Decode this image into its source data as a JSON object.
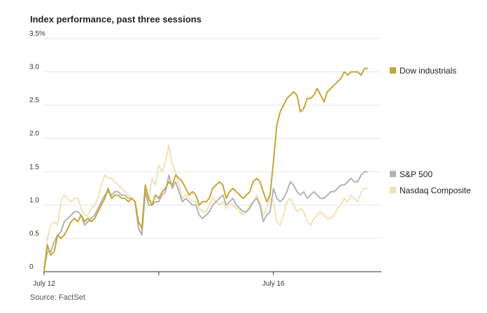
{
  "chart_data": {
    "type": "line",
    "title": "Index performance, past three sessions",
    "source": "Source: FactSet",
    "yticks": [
      "0",
      "0.5",
      "1.0",
      "1.5",
      "2.0",
      "2.5",
      "3.0",
      "3.5%"
    ],
    "ylim": [
      0,
      3.5
    ],
    "xlim": [
      0,
      100
    ],
    "x_tick_labels": [
      {
        "x": 0,
        "label": "July 12"
      },
      {
        "x": 68,
        "label": "July 16"
      }
    ],
    "x_tick_marks": [
      0,
      34,
      68
    ],
    "grid": true,
    "legend": "right",
    "series": [
      {
        "name": "Dow industrials",
        "color": "#c4a634",
        "values": [
          [
            0,
            0
          ],
          [
            1,
            0.4
          ],
          [
            2,
            0.25
          ],
          [
            3,
            0.3
          ],
          [
            4,
            0.55
          ],
          [
            5,
            0.5
          ],
          [
            6,
            0.55
          ],
          [
            7,
            0.65
          ],
          [
            8,
            0.75
          ],
          [
            9,
            0.8
          ],
          [
            10,
            0.75
          ],
          [
            11,
            0.85
          ],
          [
            12,
            0.75
          ],
          [
            13,
            0.8
          ],
          [
            14,
            0.75
          ],
          [
            15,
            0.8
          ],
          [
            16,
            0.9
          ],
          [
            17,
            1.0
          ],
          [
            18,
            1.1
          ],
          [
            19,
            1.25
          ],
          [
            20,
            1.1
          ],
          [
            21,
            1.15
          ],
          [
            22,
            1.15
          ],
          [
            23,
            1.1
          ],
          [
            24,
            1.1
          ],
          [
            25,
            1.05
          ],
          [
            26,
            1.1
          ],
          [
            27,
            1.05
          ],
          [
            28,
            0.75
          ],
          [
            29,
            0.65
          ],
          [
            30,
            1.3
          ],
          [
            31,
            1.1
          ],
          [
            32,
            1.0
          ],
          [
            33,
            1.15
          ],
          [
            34,
            1.1
          ],
          [
            35,
            1.2
          ],
          [
            36,
            1.25
          ],
          [
            37,
            1.35
          ],
          [
            38,
            1.3
          ],
          [
            39,
            1.45
          ],
          [
            40,
            1.4
          ],
          [
            41,
            1.35
          ],
          [
            42,
            1.25
          ],
          [
            43,
            1.15
          ],
          [
            44,
            1.2
          ],
          [
            45,
            1.15
          ],
          [
            46,
            1.0
          ],
          [
            47,
            1.05
          ],
          [
            48,
            1.05
          ],
          [
            49,
            1.1
          ],
          [
            50,
            1.25
          ],
          [
            51,
            1.3
          ],
          [
            52,
            1.35
          ],
          [
            53,
            1.3
          ],
          [
            54,
            1.1
          ],
          [
            55,
            1.2
          ],
          [
            56,
            1.25
          ],
          [
            57,
            1.2
          ],
          [
            58,
            1.15
          ],
          [
            59,
            1.1
          ],
          [
            60,
            1.15
          ],
          [
            61,
            1.2
          ],
          [
            62,
            1.35
          ],
          [
            63,
            1.4
          ],
          [
            64,
            1.35
          ],
          [
            65,
            1.2
          ],
          [
            66,
            1.05
          ],
          [
            67,
            1.15
          ],
          [
            68,
            1.65
          ],
          [
            69,
            2.2
          ],
          [
            70,
            2.4
          ],
          [
            71,
            2.5
          ],
          [
            72,
            2.6
          ],
          [
            73,
            2.65
          ],
          [
            74,
            2.7
          ],
          [
            75,
            2.65
          ],
          [
            76,
            2.4
          ],
          [
            77,
            2.45
          ],
          [
            78,
            2.6
          ],
          [
            79,
            2.6
          ],
          [
            80,
            2.65
          ],
          [
            81,
            2.75
          ],
          [
            82,
            2.65
          ],
          [
            83,
            2.55
          ],
          [
            84,
            2.7
          ],
          [
            85,
            2.75
          ],
          [
            86,
            2.8
          ],
          [
            87,
            2.85
          ],
          [
            88,
            2.9
          ],
          [
            89,
            3.0
          ],
          [
            90,
            2.95
          ],
          [
            91,
            3.0
          ],
          [
            92,
            3.0
          ],
          [
            93,
            3.0
          ],
          [
            94,
            2.95
          ],
          [
            95,
            3.05
          ],
          [
            96,
            3.05
          ]
        ]
      },
      {
        "name": "S&P 500",
        "color": "#b3b3b3",
        "values": [
          [
            0,
            0.05
          ],
          [
            1,
            0.3
          ],
          [
            2,
            0.3
          ],
          [
            3,
            0.45
          ],
          [
            4,
            0.55
          ],
          [
            5,
            0.6
          ],
          [
            6,
            0.75
          ],
          [
            7,
            0.8
          ],
          [
            8,
            0.85
          ],
          [
            9,
            0.9
          ],
          [
            10,
            0.9
          ],
          [
            11,
            0.85
          ],
          [
            12,
            0.7
          ],
          [
            13,
            0.75
          ],
          [
            14,
            0.8
          ],
          [
            15,
            0.85
          ],
          [
            16,
            0.95
          ],
          [
            17,
            1.05
          ],
          [
            18,
            1.15
          ],
          [
            19,
            1.2
          ],
          [
            20,
            1.15
          ],
          [
            21,
            1.2
          ],
          [
            22,
            1.2
          ],
          [
            23,
            1.15
          ],
          [
            24,
            1.15
          ],
          [
            25,
            1.1
          ],
          [
            26,
            1.1
          ],
          [
            27,
            1.05
          ],
          [
            28,
            0.65
          ],
          [
            29,
            0.55
          ],
          [
            30,
            1.2
          ],
          [
            31,
            1.0
          ],
          [
            32,
            1.0
          ],
          [
            33,
            1.05
          ],
          [
            34,
            1.05
          ],
          [
            35,
            1.15
          ],
          [
            36,
            1.2
          ],
          [
            37,
            1.45
          ],
          [
            38,
            1.25
          ],
          [
            39,
            1.35
          ],
          [
            40,
            1.2
          ],
          [
            41,
            1.05
          ],
          [
            42,
            1.1
          ],
          [
            43,
            1.05
          ],
          [
            44,
            1.0
          ],
          [
            45,
            1.0
          ],
          [
            46,
            0.85
          ],
          [
            47,
            0.8
          ],
          [
            48,
            0.85
          ],
          [
            49,
            0.9
          ],
          [
            50,
            1.0
          ],
          [
            51,
            1.05
          ],
          [
            52,
            1.1
          ],
          [
            53,
            1.15
          ],
          [
            54,
            1.0
          ],
          [
            55,
            1.05
          ],
          [
            56,
            1.1
          ],
          [
            57,
            1.0
          ],
          [
            58,
            0.95
          ],
          [
            59,
            0.9
          ],
          [
            60,
            0.9
          ],
          [
            61,
            0.95
          ],
          [
            62,
            1.05
          ],
          [
            63,
            1.1
          ],
          [
            64,
            1.0
          ],
          [
            65,
            0.75
          ],
          [
            66,
            0.85
          ],
          [
            67,
            0.9
          ],
          [
            68,
            1.25
          ],
          [
            69,
            1.1
          ],
          [
            70,
            1.05
          ],
          [
            71,
            1.1
          ],
          [
            72,
            1.2
          ],
          [
            73,
            1.35
          ],
          [
            74,
            1.3
          ],
          [
            75,
            1.2
          ],
          [
            76,
            1.15
          ],
          [
            77,
            1.2
          ],
          [
            78,
            1.1
          ],
          [
            79,
            1.15
          ],
          [
            80,
            1.2
          ],
          [
            81,
            1.15
          ],
          [
            82,
            1.1
          ],
          [
            83,
            1.1
          ],
          [
            84,
            1.15
          ],
          [
            85,
            1.2
          ],
          [
            86,
            1.2
          ],
          [
            87,
            1.25
          ],
          [
            88,
            1.3
          ],
          [
            89,
            1.3
          ],
          [
            90,
            1.35
          ],
          [
            91,
            1.4
          ],
          [
            92,
            1.35
          ],
          [
            93,
            1.35
          ],
          [
            94,
            1.45
          ],
          [
            95,
            1.5
          ],
          [
            96,
            1.5
          ]
        ]
      },
      {
        "name": "Nasdaq Composite",
        "color": "#f1e2b5",
        "values": [
          [
            0,
            0.1
          ],
          [
            1,
            0.5
          ],
          [
            2,
            0.7
          ],
          [
            3,
            0.75
          ],
          [
            4,
            0.7
          ],
          [
            5,
            1.05
          ],
          [
            6,
            1.15
          ],
          [
            7,
            1.1
          ],
          [
            8,
            1.05
          ],
          [
            9,
            1.1
          ],
          [
            10,
            1.1
          ],
          [
            11,
            0.95
          ],
          [
            12,
            0.85
          ],
          [
            13,
            0.85
          ],
          [
            14,
            0.95
          ],
          [
            15,
            1.0
          ],
          [
            16,
            1.1
          ],
          [
            17,
            1.3
          ],
          [
            18,
            1.45
          ],
          [
            19,
            1.4
          ],
          [
            20,
            1.4
          ],
          [
            21,
            1.35
          ],
          [
            22,
            1.3
          ],
          [
            23,
            1.25
          ],
          [
            24,
            1.2
          ],
          [
            25,
            1.15
          ],
          [
            26,
            1.1
          ],
          [
            27,
            1.05
          ],
          [
            28,
            0.65
          ],
          [
            29,
            0.6
          ],
          [
            30,
            1.25
          ],
          [
            31,
            1.05
          ],
          [
            32,
            1.4
          ],
          [
            33,
            1.3
          ],
          [
            34,
            1.6
          ],
          [
            35,
            1.5
          ],
          [
            36,
            1.65
          ],
          [
            37,
            1.9
          ],
          [
            38,
            1.6
          ],
          [
            39,
            1.5
          ],
          [
            40,
            1.3
          ],
          [
            41,
            1.1
          ],
          [
            42,
            1.15
          ],
          [
            43,
            1.1
          ],
          [
            44,
            1.05
          ],
          [
            45,
            1.05
          ],
          [
            46,
            0.95
          ],
          [
            47,
            0.9
          ],
          [
            48,
            0.9
          ],
          [
            49,
            1.0
          ],
          [
            50,
            1.1
          ],
          [
            51,
            1.05
          ],
          [
            52,
            1.0
          ],
          [
            53,
            1.05
          ],
          [
            54,
            0.95
          ],
          [
            55,
            1.0
          ],
          [
            56,
            1.0
          ],
          [
            57,
            0.95
          ],
          [
            58,
            0.9
          ],
          [
            59,
            0.85
          ],
          [
            60,
            0.9
          ],
          [
            61,
            1.0
          ],
          [
            62,
            1.05
          ],
          [
            63,
            1.15
          ],
          [
            64,
            1.05
          ],
          [
            65,
            0.85
          ],
          [
            66,
            0.95
          ],
          [
            67,
            1.1
          ],
          [
            68,
            1.05
          ],
          [
            69,
            0.75
          ],
          [
            70,
            0.7
          ],
          [
            71,
            0.85
          ],
          [
            72,
            1.05
          ],
          [
            73,
            1.1
          ],
          [
            74,
            1.0
          ],
          [
            75,
            0.9
          ],
          [
            76,
            0.95
          ],
          [
            77,
            0.9
          ],
          [
            78,
            0.75
          ],
          [
            79,
            0.7
          ],
          [
            80,
            0.8
          ],
          [
            81,
            0.85
          ],
          [
            82,
            0.9
          ],
          [
            83,
            0.85
          ],
          [
            84,
            0.8
          ],
          [
            85,
            0.8
          ],
          [
            86,
            0.85
          ],
          [
            87,
            0.95
          ],
          [
            88,
            1.0
          ],
          [
            89,
            1.1
          ],
          [
            90,
            1.05
          ],
          [
            91,
            1.15
          ],
          [
            92,
            1.1
          ],
          [
            93,
            1.05
          ],
          [
            94,
            1.2
          ],
          [
            95,
            1.25
          ],
          [
            96,
            1.25
          ]
        ]
      }
    ]
  }
}
